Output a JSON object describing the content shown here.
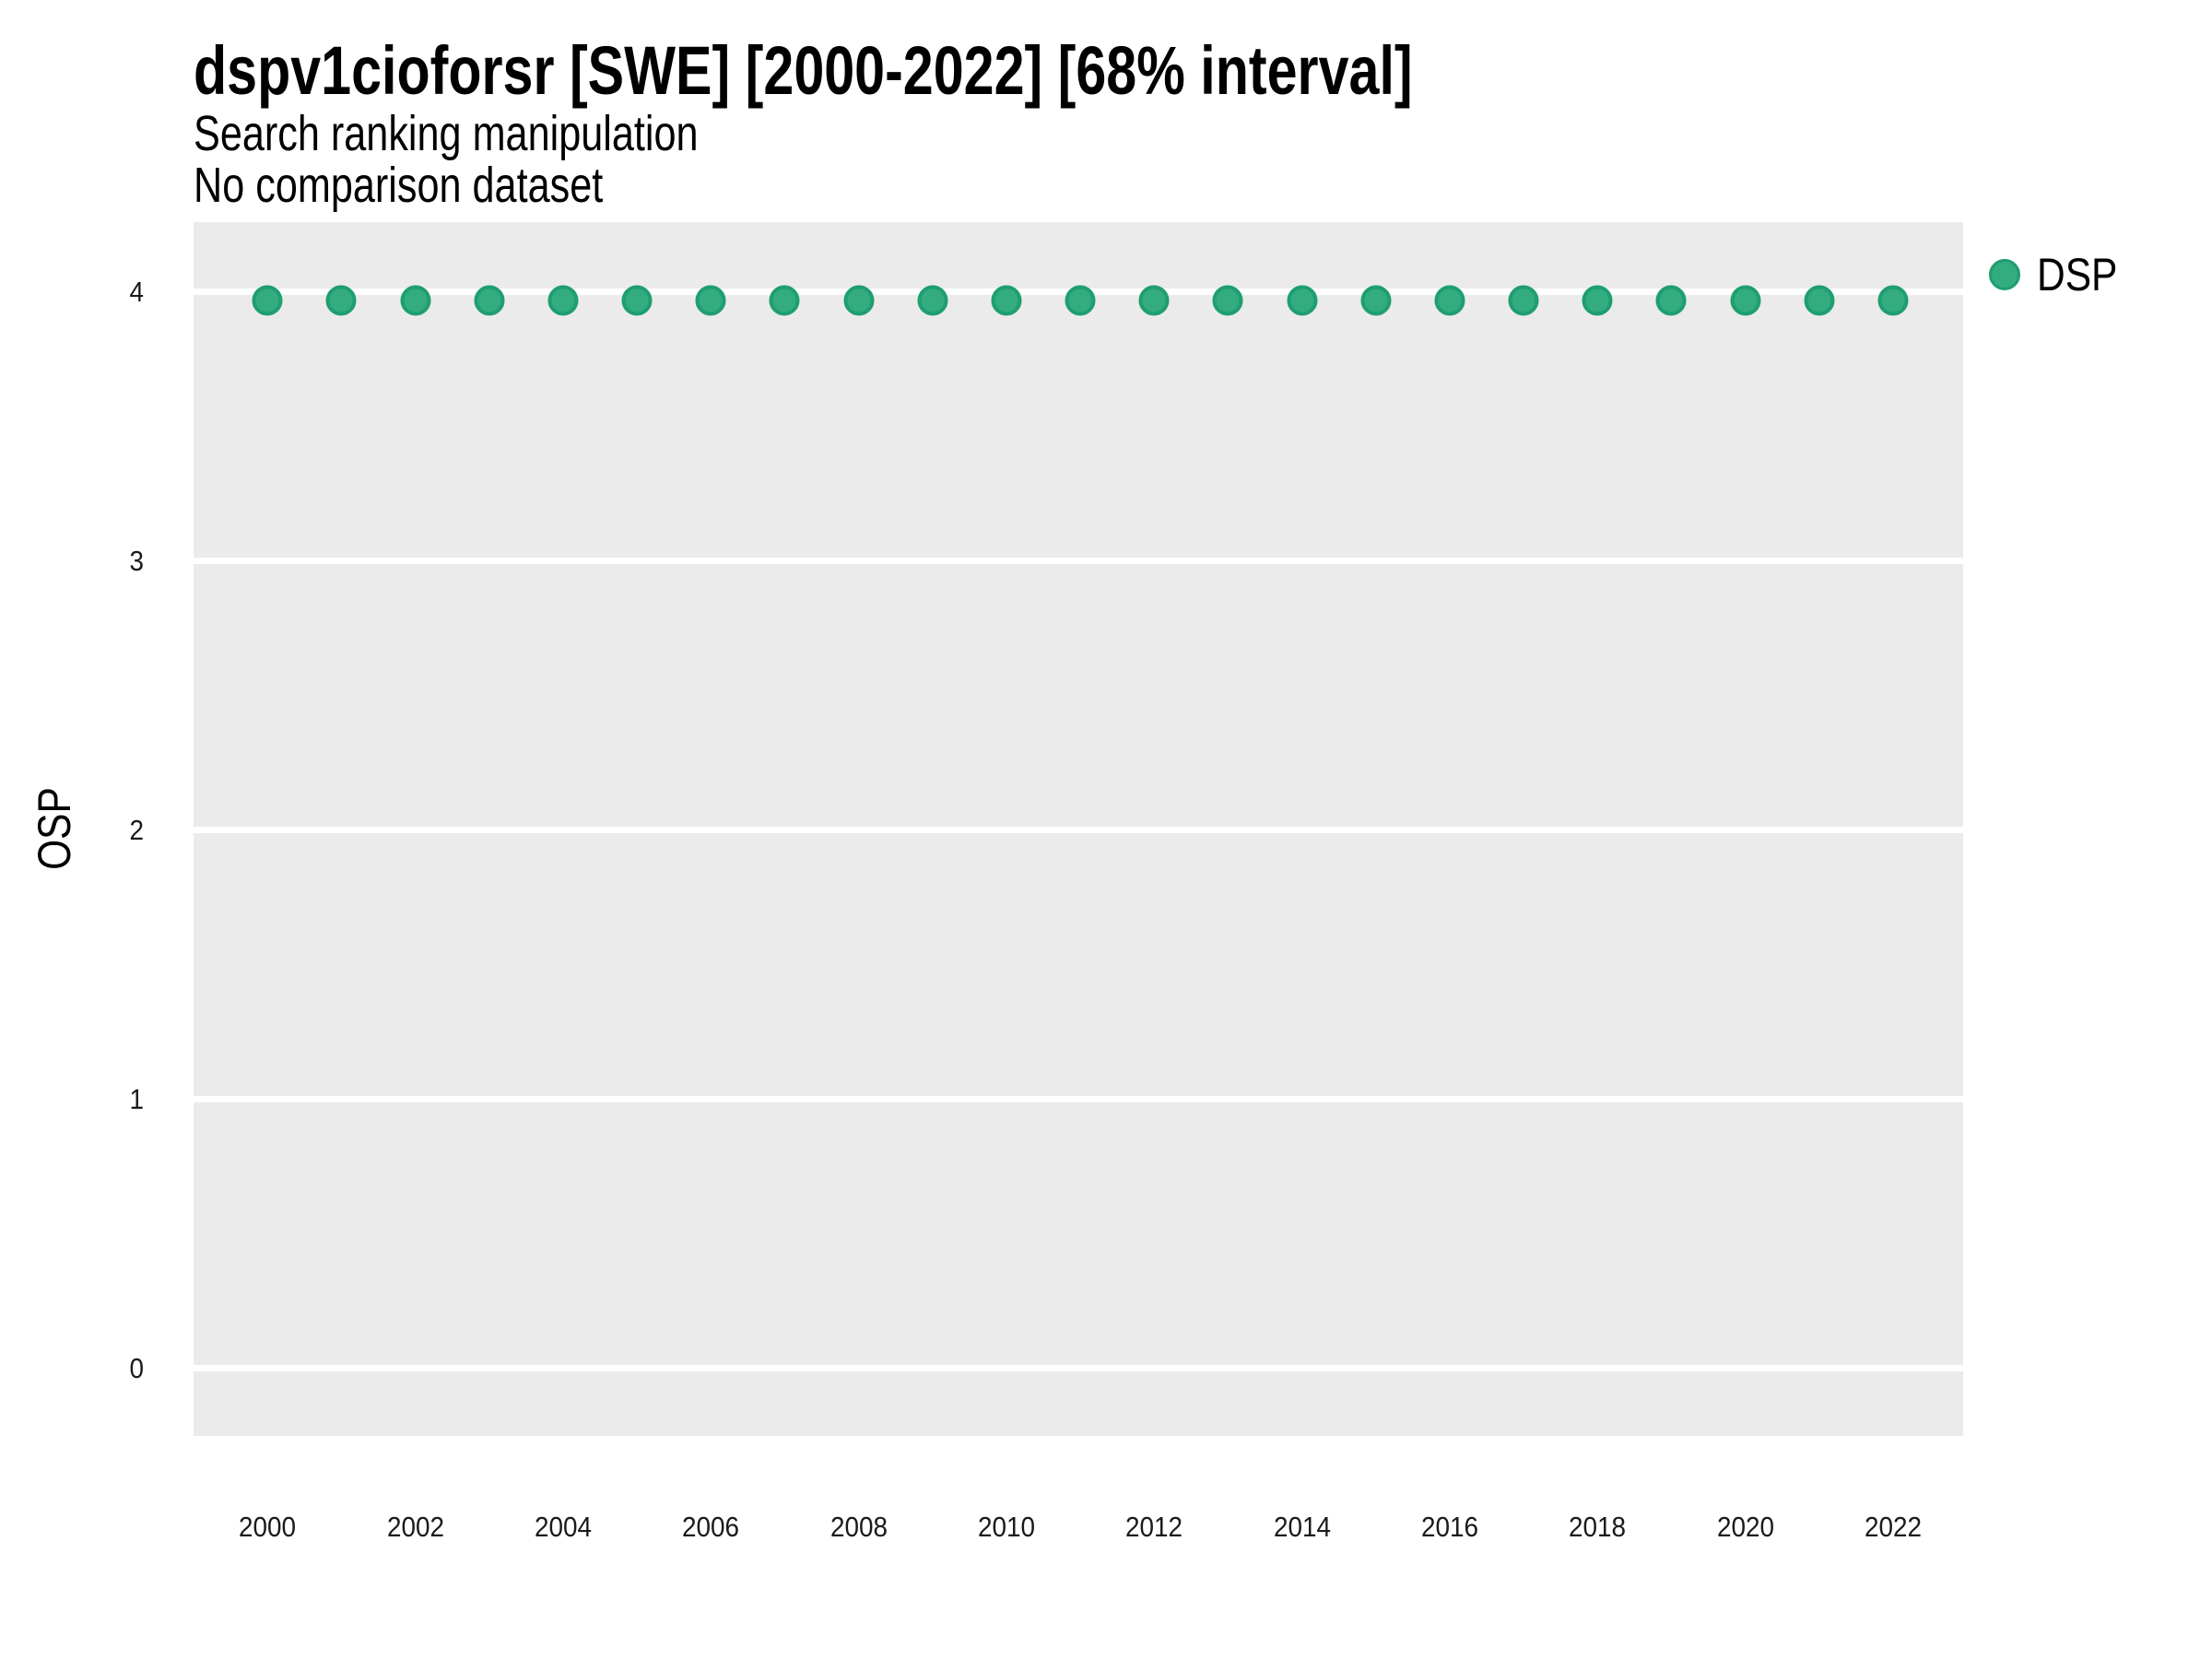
{
  "header": {
    "title": "dspv1cioforsr [SWE] [2000-2022] [68% interval]",
    "subtitle_line1": "Search ranking manipulation",
    "subtitle_line2": "No comparison dataset"
  },
  "colors": {
    "panel_background": "#EBEBEB",
    "gridline": "#FFFFFF",
    "point_fill": "#33AC7F",
    "point_edge": "#1E9E71",
    "text": "#000000"
  },
  "legend": {
    "items": [
      {
        "label": "DSP",
        "marker": "circle-icon",
        "fill": "#33AC7F",
        "edge": "#1E9E71"
      }
    ],
    "position": "right-top"
  },
  "chart_data": {
    "type": "scatter",
    "title": "dspv1cioforsr [SWE] [2000-2022] [68% interval]",
    "subtitle": [
      "Search ranking manipulation",
      "No comparison dataset"
    ],
    "xlabel": "",
    "ylabel": "OSP",
    "x": [
      2000,
      2001,
      2002,
      2003,
      2004,
      2005,
      2006,
      2007,
      2008,
      2009,
      2010,
      2011,
      2012,
      2013,
      2014,
      2015,
      2016,
      2017,
      2018,
      2019,
      2020,
      2021,
      2022
    ],
    "series": [
      {
        "name": "DSP",
        "values": [
          3.97,
          3.97,
          3.97,
          3.97,
          3.97,
          3.97,
          3.97,
          3.97,
          3.97,
          3.97,
          3.97,
          3.97,
          3.97,
          3.97,
          3.97,
          3.97,
          3.97,
          3.97,
          3.97,
          3.97,
          3.97,
          3.97,
          3.97
        ],
        "color": "#33AC7F",
        "edge_color": "#1E9E71"
      }
    ],
    "xlim": [
      1999.0,
      2022.95
    ],
    "ylim": [
      -0.25,
      4.26
    ],
    "x_ticks": [
      2000,
      2002,
      2004,
      2006,
      2008,
      2010,
      2012,
      2014,
      2016,
      2018,
      2020,
      2022
    ],
    "y_ticks": [
      0,
      1,
      2,
      3,
      4
    ],
    "grid": "major-horizontal-only",
    "panel_background": "#EBEBEB",
    "legend_position": "right-top"
  }
}
